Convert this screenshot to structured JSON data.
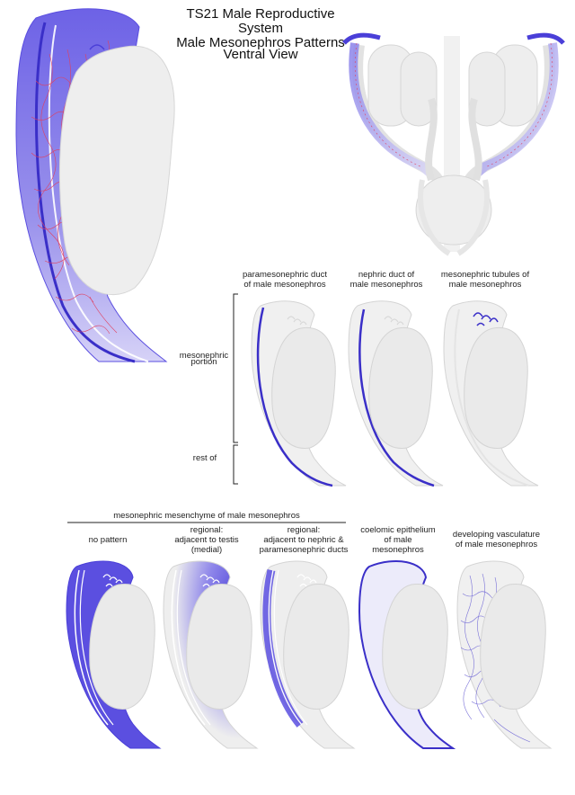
{
  "header": {
    "title_line1": "TS21 Male Reproductive System",
    "title_line2": "Male Mesonephros Patterns",
    "view": "Ventral View"
  },
  "top_row": {
    "paramesonephric_line1": "paramesonephric duct",
    "paramesonephric_line2": "of male mesonephros",
    "nephric_line1": "nephric duct of",
    "nephric_line2": "male mesonephros",
    "tubules_line1": "mesonephric tubules of",
    "tubules_line2": "male mesonephros"
  },
  "regions": {
    "mesonephric_line1": "mesonephric",
    "mesonephric_line2": "portion",
    "rest_of": "rest of"
  },
  "bottom_row": {
    "group_label": "mesonephric mesenchyme of male mesonephros",
    "no_pattern": "no pattern",
    "medial_line1": "regional:",
    "medial_line2": "adjacent to testis",
    "medial_line3": "(medial)",
    "ducts_line1": "regional:",
    "ducts_line2": "adjacent to nephric &",
    "ducts_line3": "paramesonephric ducts",
    "coelomic_line1": "coelomic epithelium",
    "coelomic_line2": "of male",
    "coelomic_line3": "mesonephros",
    "vasc_line1": "developing vasculature",
    "vasc_line2": "of male mesonephros"
  },
  "colors": {
    "highlight": "#5b4fe0",
    "light_highlight": "#c9c3f5",
    "organ_fill": "#eeeeee",
    "organ_stroke": "#d0d0d0",
    "vessel": "#e04060"
  }
}
